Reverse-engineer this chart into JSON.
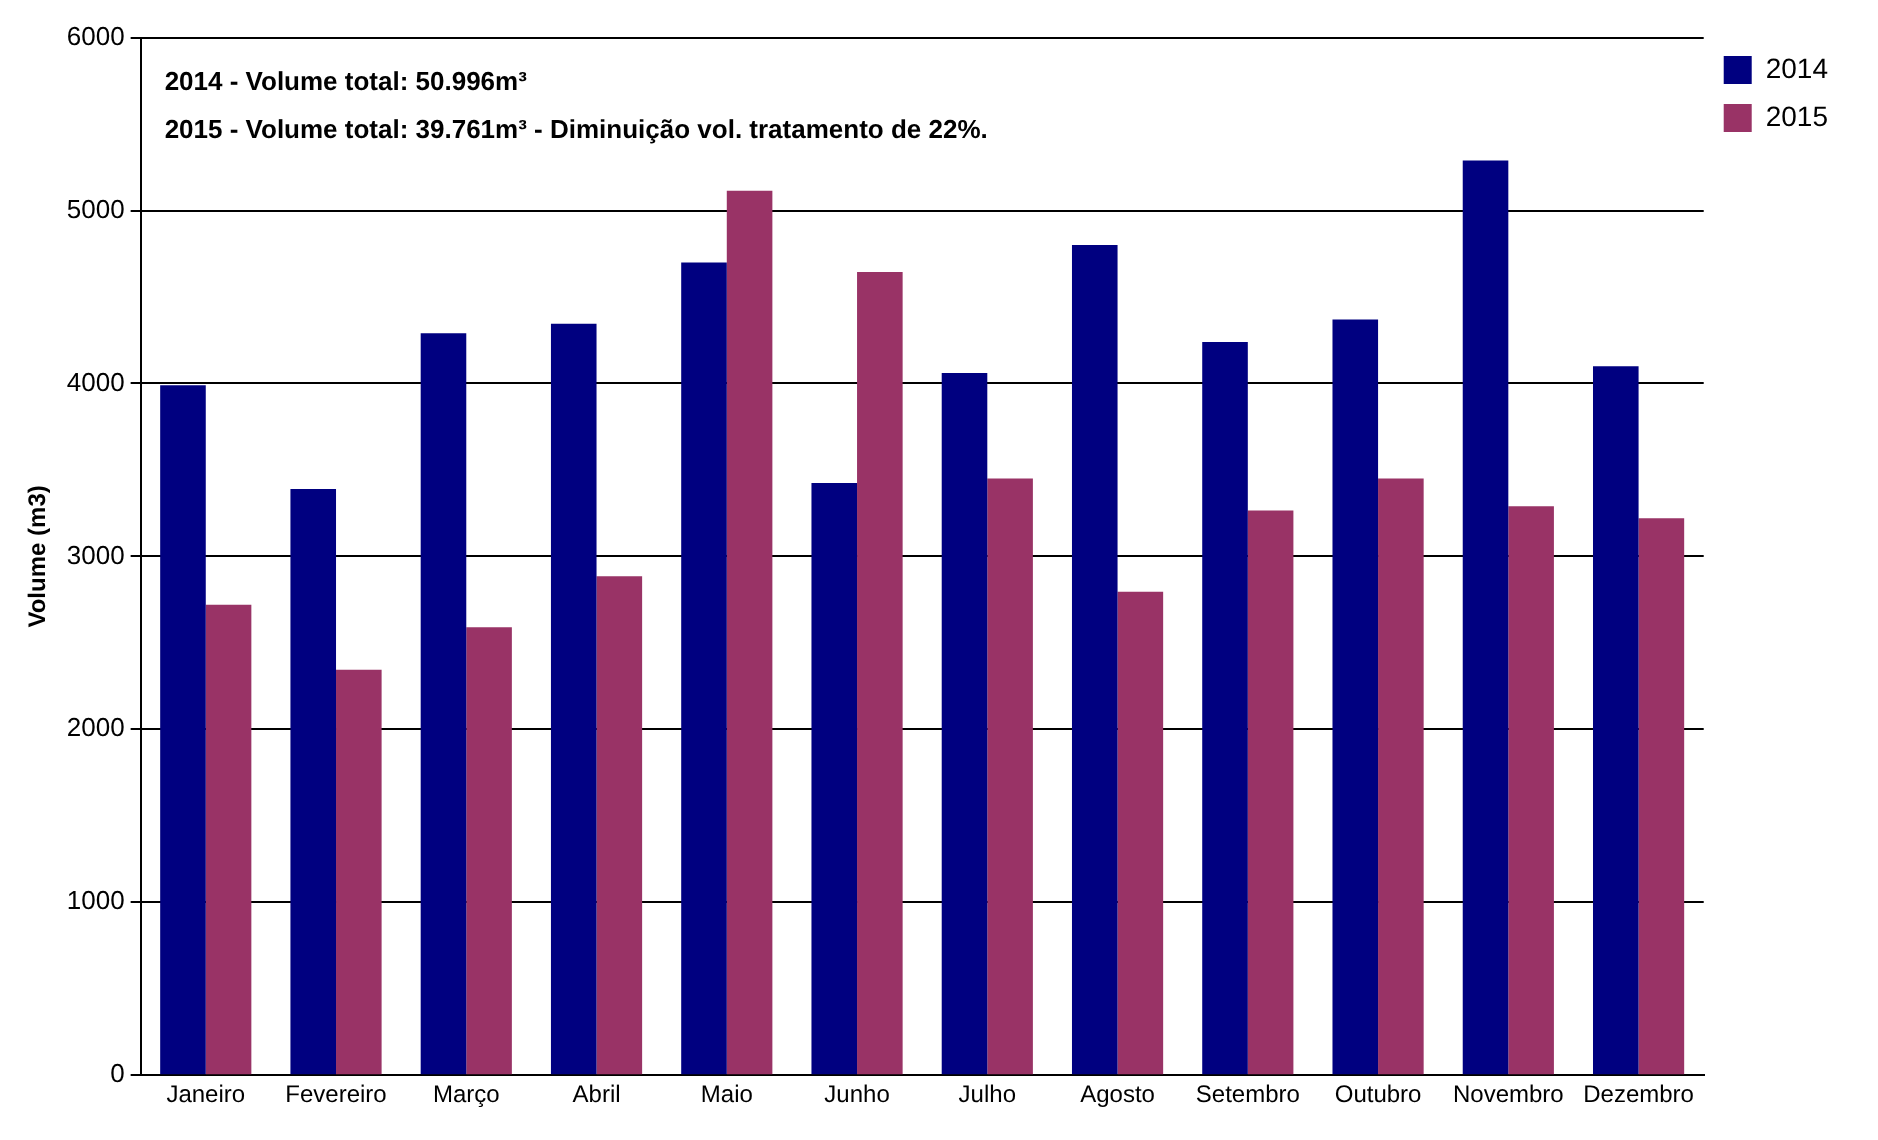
{
  "chart_data": {
    "type": "bar",
    "ylabel": "Volume (m3)",
    "annotations": [
      "2014 - Volume total: 50.996m³",
      "2015 - Volume total: 39.761m³ - Diminuição vol. tratamento de 22%."
    ],
    "categories": [
      "Janeiro",
      "Fevereiro",
      "Março",
      "Abril",
      "Maio",
      "Junho",
      "Julho",
      "Agosto",
      "Setembro",
      "Outubro",
      "Novembro",
      "Dezembro"
    ],
    "series": [
      {
        "name": "2014",
        "color": "#000080",
        "values": [
          3990,
          3390,
          4290,
          4345,
          4700,
          3425,
          4060,
          4800,
          4240,
          4370,
          5290,
          4100
        ]
      },
      {
        "name": "2015",
        "color": "#993366",
        "values": [
          2720,
          2345,
          2590,
          2885,
          5115,
          4645,
          3450,
          2795,
          3265,
          3450,
          3290,
          3220
        ]
      }
    ],
    "ylim": [
      0,
      6000
    ],
    "yticks": [
      0,
      1000,
      2000,
      3000,
      4000,
      5000,
      6000
    ],
    "grid": "y",
    "legend": "top right"
  }
}
